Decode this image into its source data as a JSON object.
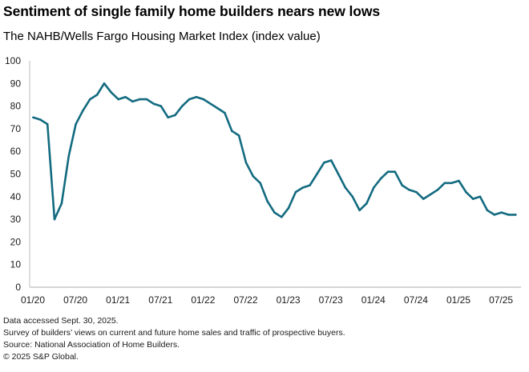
{
  "chart_data": {
    "type": "line",
    "title": "Sentiment of single family home builders nears new lows",
    "subtitle": "The NAHB/Wells Fargo Housing Market Index (index value)",
    "xlabel": "",
    "ylabel": "",
    "ylim": [
      0,
      100
    ],
    "yticks": [
      0,
      10,
      20,
      30,
      40,
      50,
      60,
      70,
      80,
      90,
      100
    ],
    "xticks": [
      "01/20",
      "07/20",
      "01/21",
      "07/21",
      "01/22",
      "07/22",
      "01/23",
      "07/23",
      "01/24",
      "07/24",
      "01/25",
      "07/25"
    ],
    "xtick_month_index": [
      0,
      6,
      12,
      18,
      24,
      30,
      36,
      42,
      48,
      54,
      60,
      66
    ],
    "x_start": "2020-01",
    "x_end": "2025-09",
    "grid": false,
    "legend": "none",
    "series": [
      {
        "name": "NAHB/Wells Fargo Housing Market Index",
        "color": "#136b80",
        "values": [
          75,
          74,
          72,
          30,
          37,
          58,
          72,
          78,
          83,
          85,
          90,
          86,
          83,
          84,
          82,
          83,
          83,
          81,
          80,
          75,
          76,
          80,
          83,
          84,
          83,
          81,
          79,
          77,
          69,
          67,
          55,
          49,
          46,
          38,
          33,
          31,
          35,
          42,
          44,
          45,
          50,
          55,
          56,
          50,
          44,
          40,
          34,
          37,
          44,
          48,
          51,
          51,
          45,
          43,
          42,
          39,
          41,
          43,
          46,
          46,
          47,
          42,
          39,
          40,
          34,
          32,
          33,
          32,
          32
        ]
      }
    ]
  },
  "footer": {
    "line1": "Data accessed Sept. 30, 2025.",
    "line2": "Survey of builders’ views on current and future home sales and traffic of prospective buyers.",
    "line3": "Source: National Association of Home Builders.",
    "line4": "© 2025 S&P Global."
  },
  "colors": {
    "axis": "#c8c8c8",
    "line": "#136b80"
  }
}
